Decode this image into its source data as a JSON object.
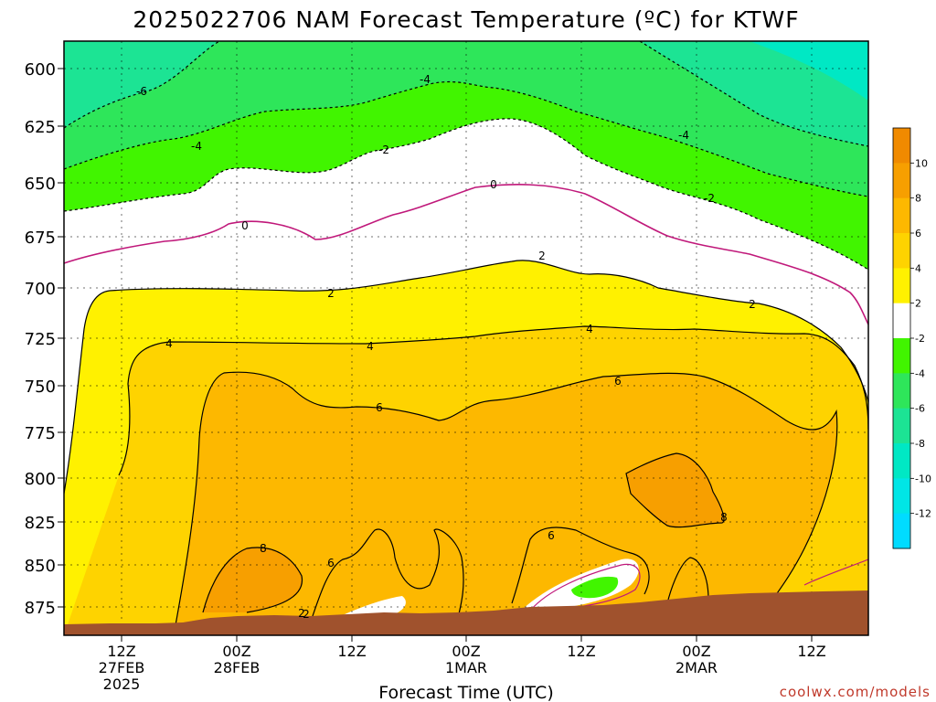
{
  "chart_data": {
    "type": "heatmap",
    "title": "2025022706 NAM Forecast Temperature (ºC) for KTWF",
    "xlabel": "Forecast Time (UTC)",
    "ylabel": "",
    "y_ticks": [
      600,
      625,
      650,
      675,
      700,
      725,
      750,
      775,
      800,
      825,
      850,
      875
    ],
    "x_ticks": [
      {
        "l1": "12Z",
        "l2": "27FEB",
        "l3": "2025"
      },
      {
        "l1": "00Z",
        "l2": "28FEB",
        "l3": ""
      },
      {
        "l1": "12Z",
        "l2": "",
        "l3": ""
      },
      {
        "l1": "00Z",
        "l2": "1MAR",
        "l3": ""
      },
      {
        "l1": "12Z",
        "l2": "",
        "l3": ""
      },
      {
        "l1": "00Z",
        "l2": "2MAR",
        "l3": ""
      },
      {
        "l1": "12Z",
        "l2": "",
        "l3": ""
      }
    ],
    "colorbar": {
      "labels": [
        "10",
        "8",
        "6",
        "4",
        "2",
        "-2",
        "-4",
        "-6",
        "-8",
        "-10",
        "-12"
      ],
      "colors": [
        "#f08a00",
        "#f79f00",
        "#fdb800",
        "#fed300",
        "#fff100",
        "#ffffff",
        "#41f500",
        "#2ee65a",
        "#1ce494",
        "#00e8c4",
        "#00e6e6",
        "#00dcff"
      ]
    },
    "contour_labels": [
      "-6",
      "-4",
      "-4",
      "-4",
      "-2",
      "-2",
      "0",
      "0",
      "2",
      "2",
      "2",
      "2",
      "4",
      "4",
      "4",
      "6",
      "6",
      "6",
      "6",
      "8",
      "8",
      "2"
    ],
    "surface_color": "#a0522d",
    "credit": "coolwx.com/models"
  }
}
